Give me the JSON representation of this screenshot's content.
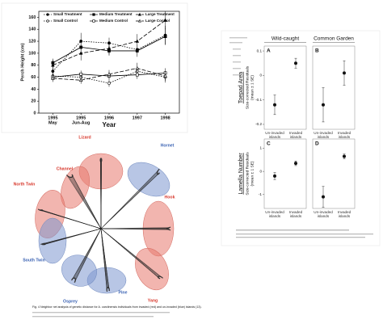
{
  "chart_data": [
    {
      "type": "line",
      "x_label": "Year",
      "y_label": "Perch Height (cm)",
      "categories": [
        "1995",
        "1995",
        "1996",
        "1997",
        "1998"
      ],
      "category_sublabels": [
        "May",
        "Jun-Aug",
        null,
        null,
        null
      ],
      "ylim": [
        0,
        170
      ],
      "yticks": [
        0,
        20,
        40,
        60,
        80,
        100,
        120,
        140,
        160
      ],
      "series": [
        {
          "name": "Small Treatment",
          "color": "#000000",
          "marker": "circle",
          "filled": true,
          "dash": "1.5,1.5",
          "values": [
            70,
            120,
            117,
            106,
            130
          ],
          "errors": [
            8,
            14,
            9,
            8,
            16
          ]
        },
        {
          "name": "Medium Treatment",
          "color": "#000000",
          "marker": "square",
          "filled": true,
          "dash": "none",
          "values": [
            84,
            110,
            104,
            104,
            128
          ],
          "errors": [
            7,
            10,
            8,
            10,
            14
          ]
        },
        {
          "name": "Large Treatment",
          "color": "#000000",
          "marker": "triangle",
          "filled": true,
          "dash": "5,2",
          "values": [
            80,
            100,
            108,
            120,
            155
          ],
          "errors": [
            9,
            12,
            10,
            12,
            15
          ]
        },
        {
          "name": "Small Control",
          "color": "#000000",
          "marker": "circle",
          "filled": false,
          "dash": "1.5,1.5",
          "values": [
            62,
            60,
            50,
            70,
            60
          ],
          "errors": [
            6,
            7,
            6,
            8,
            9
          ]
        },
        {
          "name": "Medium Control",
          "color": "#000000",
          "marker": "square",
          "filled": false,
          "dash": "none",
          "values": [
            60,
            65,
            62,
            64,
            67
          ],
          "errors": [
            5,
            6,
            6,
            7,
            8
          ]
        },
        {
          "name": "Large Control",
          "color": "#000000",
          "marker": "triangle",
          "filled": false,
          "dash": "5,2",
          "values": [
            58,
            55,
            65,
            75,
            62
          ],
          "errors": [
            6,
            6,
            7,
            9,
            8
          ]
        }
      ]
    },
    {
      "type": "dot",
      "panel": "A",
      "title": "Wild-caught",
      "row_label": "Toepad Area",
      "y_label": "Size-corrected Residuals",
      "y_sublabel": "(mean ± 1 SE)",
      "categories": [
        "Un-invaded islands",
        "Invaded islands"
      ],
      "values": [
        -0.12,
        0.05
      ],
      "errors": [
        0.04,
        0.02
      ],
      "ylim": [
        -0.22,
        0.12
      ],
      "yticks": [
        -0.2,
        -0.1,
        0,
        0.1
      ]
    },
    {
      "type": "dot",
      "panel": "B",
      "title": "Common Garden",
      "categories": [
        "Un-invaded islands",
        "Invaded islands"
      ],
      "values": [
        -0.12,
        0.01
      ],
      "errors": [
        0.07,
        0.05
      ],
      "ylim": [
        -0.22,
        0.12
      ]
    },
    {
      "type": "dot",
      "panel": "C",
      "row_label": "Lamella Number",
      "y_label": "Size-corrected Residuals",
      "y_sublabel": "(mean ± 1 SE)",
      "categories": [
        "Un-invaded islands",
        "Invaded islands"
      ],
      "values": [
        -0.2,
        0.35
      ],
      "errors": [
        0.15,
        0.1
      ],
      "ylim": [
        -1.6,
        1.4
      ],
      "yticks": [
        -1,
        0,
        1
      ]
    },
    {
      "type": "dot",
      "panel": "D",
      "categories": [
        "Un-invaded islands",
        "Invaded islands"
      ],
      "values": [
        -1.1,
        0.65
      ],
      "errors": [
        0.45,
        0.1
      ],
      "ylim": [
        -1.6,
        1.4
      ]
    }
  ],
  "network": {
    "nodes": [
      {
        "label": "Lizard",
        "group": "invaded"
      },
      {
        "label": "Channel",
        "group": "invaded"
      },
      {
        "label": "North Twin",
        "group": "invaded"
      },
      {
        "label": "Hornet",
        "group": "un-invaded"
      },
      {
        "label": "Hook",
        "group": "invaded"
      },
      {
        "label": "Yang",
        "group": "invaded"
      },
      {
        "label": "Pine",
        "group": "un-invaded"
      },
      {
        "label": "Osprey",
        "group": "un-invaded"
      },
      {
        "label": "South Twin",
        "group": "un-invaded"
      }
    ],
    "caption": "Fig. 4 Neighbor net analysis of genetic distance for A. carolinensis individuals from invaded (red) and un-invaded (blue) islands (13)."
  }
}
